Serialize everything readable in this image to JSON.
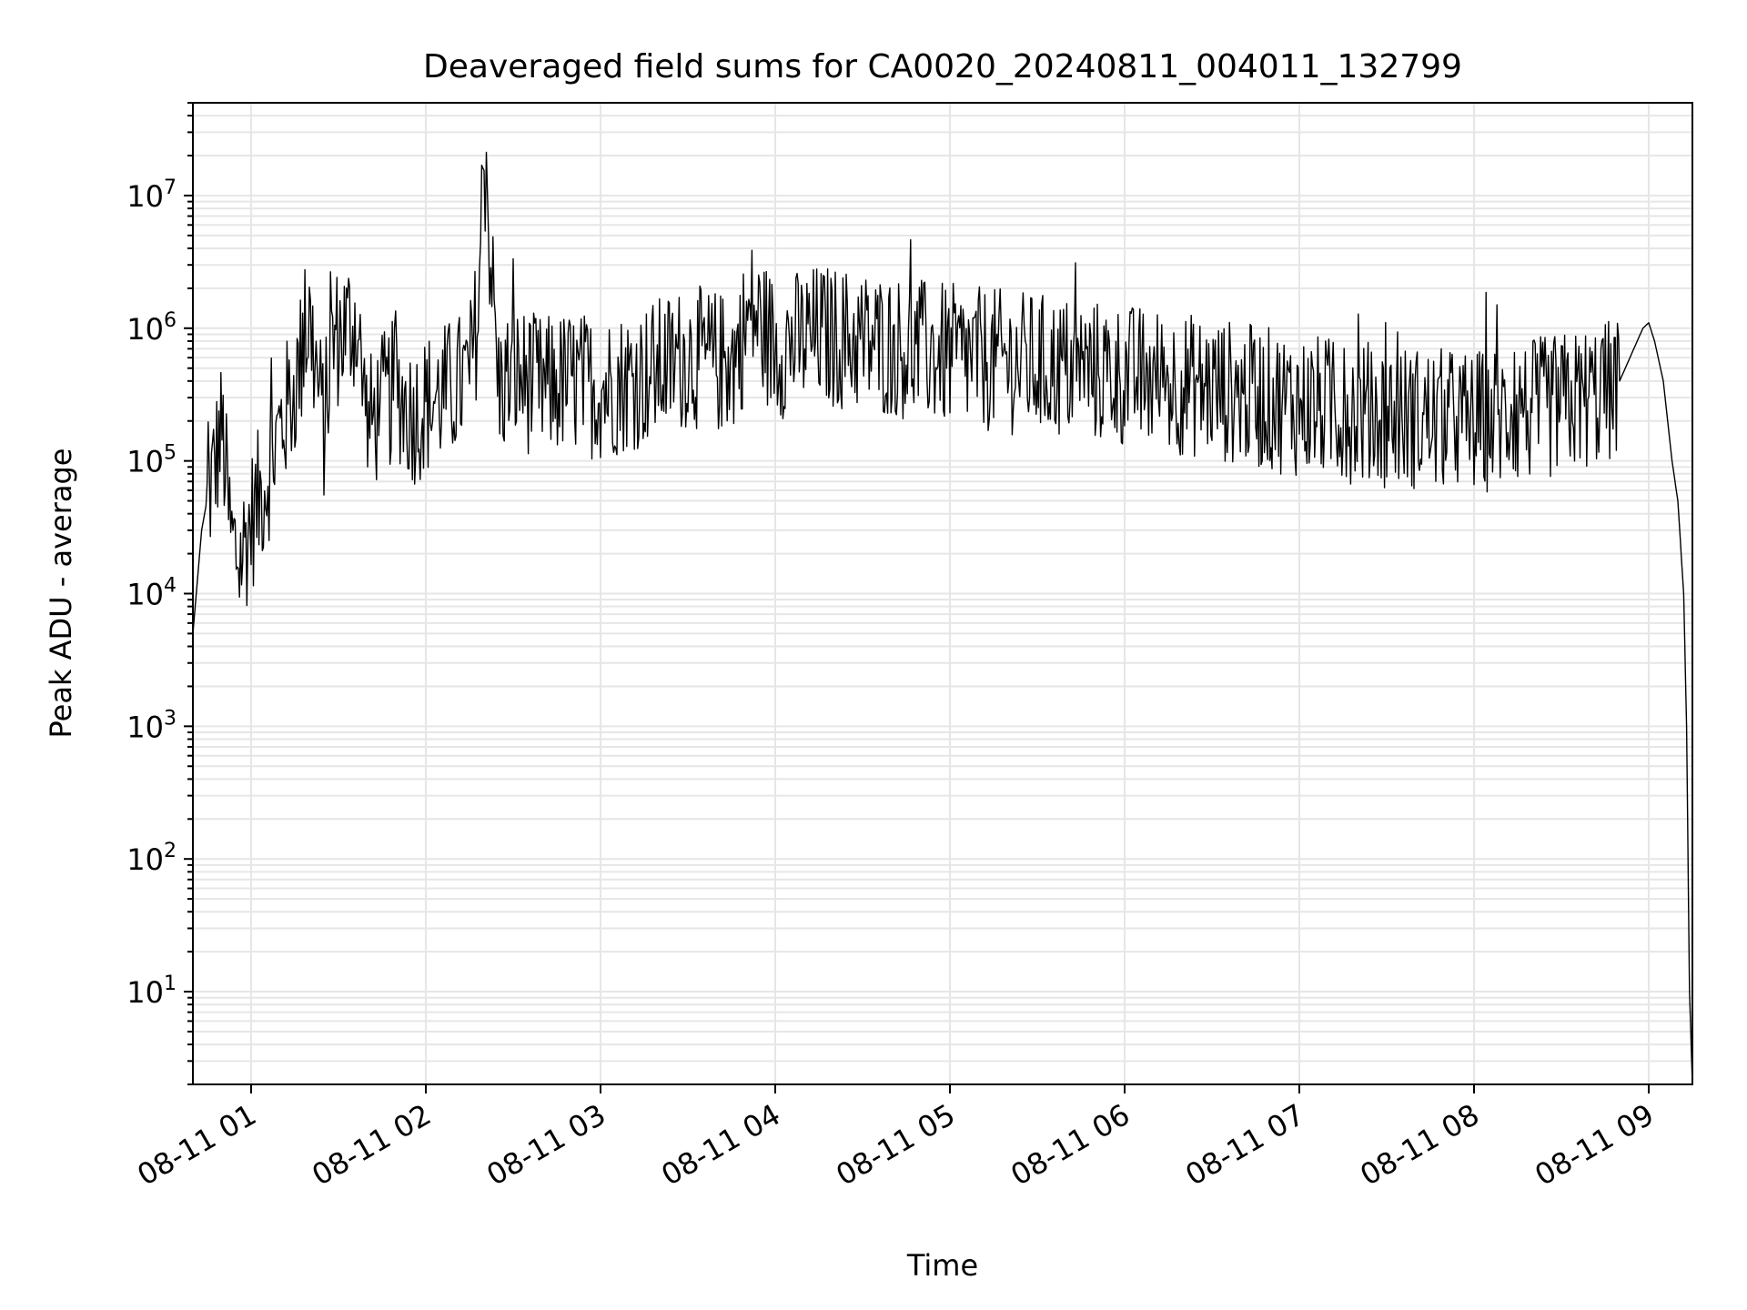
{
  "chart_data": {
    "type": "line",
    "title": "Deaveraged field sums for CA0020_20240811_004011_132799",
    "xlabel": "Time",
    "ylabel": "Peak ADU - average",
    "yscale": "log",
    "grid": "on (major and minor)",
    "xlim": [
      "2024-08-11 00:40",
      "2024-08-11 09:15"
    ],
    "ylim": [
      2,
      50000000
    ],
    "x_ticks": [
      "08-11 01",
      "08-11 02",
      "08-11 03",
      "08-11 04",
      "08-11 05",
      "08-11 06",
      "08-11 07",
      "08-11 08",
      "08-11 09"
    ],
    "y_ticks": [
      {
        "base": "10",
        "exp": "1",
        "value": 10
      },
      {
        "base": "10",
        "exp": "2",
        "value": 100
      },
      {
        "base": "10",
        "exp": "3",
        "value": 1000
      },
      {
        "base": "10",
        "exp": "4",
        "value": 10000
      },
      {
        "base": "10",
        "exp": "5",
        "value": 100000
      },
      {
        "base": "10",
        "exp": "6",
        "value": 1000000
      },
      {
        "base": "10",
        "exp": "7",
        "value": 10000000
      }
    ],
    "series": [
      {
        "color": "#000000",
        "x": [
          "2024-08-11 00:40",
          "2024-08-11 00:43",
          "2024-08-11 00:46",
          "2024-08-11 00:50",
          "2024-08-11 00:53",
          "2024-08-11 00:56",
          "2024-08-11 01:00",
          "2024-08-11 01:05",
          "2024-08-11 01:10",
          "2024-08-11 01:15",
          "2024-08-11 01:20",
          "2024-08-11 01:25",
          "2024-08-11 01:28",
          "2024-08-11 01:32",
          "2024-08-11 01:36",
          "2024-08-11 01:40",
          "2024-08-11 01:45",
          "2024-08-11 01:50",
          "2024-08-11 01:55",
          "2024-08-11 02:00",
          "2024-08-11 02:05",
          "2024-08-11 02:10",
          "2024-08-11 02:15",
          "2024-08-11 02:18",
          "2024-08-11 02:20",
          "2024-08-11 02:25",
          "2024-08-11 02:30",
          "2024-08-11 02:40",
          "2024-08-11 02:50",
          "2024-08-11 03:00",
          "2024-08-11 03:15",
          "2024-08-11 03:30",
          "2024-08-11 03:45",
          "2024-08-11 03:52",
          "2024-08-11 04:00",
          "2024-08-11 04:15",
          "2024-08-11 04:30",
          "2024-08-11 04:45",
          "2024-08-11 05:00",
          "2024-08-11 05:30",
          "2024-08-11 06:00",
          "2024-08-11 06:30",
          "2024-08-11 07:00",
          "2024-08-11 07:30",
          "2024-08-11 08:00",
          "2024-08-11 08:30",
          "2024-08-11 08:50",
          "2024-08-11 08:58",
          "2024-08-11 09:00",
          "2024-08-11 09:02",
          "2024-08-11 09:05",
          "2024-08-11 09:08",
          "2024-08-11 09:10",
          "2024-08-11 09:12",
          "2024-08-11 09:13",
          "2024-08-11 09:14",
          "2024-08-11 09:15"
        ],
        "values": [
          5000,
          30000,
          70000,
          200000,
          30000,
          20000,
          40000,
          80000,
          200000,
          400000,
          1300000,
          200000,
          900000,
          1100000,
          1300000,
          200000,
          300000,
          400000,
          250000,
          300000,
          350000,
          400000,
          500000,
          1500000,
          25000000,
          400000,
          500000,
          400000,
          450000,
          400000,
          500000,
          700000,
          600000,
          1500000,
          800000,
          1000000,
          900000,
          800000,
          700000,
          600000,
          500000,
          400000,
          300000,
          250000,
          220000,
          300000,
          400000,
          1000000,
          1100000,
          800000,
          400000,
          100000,
          50000,
          10000,
          1000,
          10,
          2
        ]
      }
    ]
  }
}
